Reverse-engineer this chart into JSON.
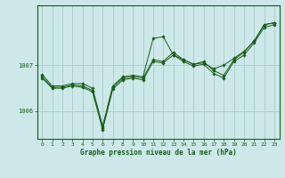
{
  "title": "Graphe pression niveau de la mer (hPa)",
  "background_color": "#cce8e8",
  "grid_color": "#aacccc",
  "line_color": "#1a5c1a",
  "marker_color": "#1a5c1a",
  "xlim": [
    -0.5,
    23.5
  ],
  "ylim": [
    1005.4,
    1008.3
  ],
  "yticks": [
    1006,
    1007
  ],
  "xticks": [
    0,
    1,
    2,
    3,
    4,
    5,
    6,
    7,
    8,
    9,
    10,
    11,
    12,
    13,
    14,
    15,
    16,
    17,
    18,
    19,
    20,
    21,
    22,
    23
  ],
  "series": [
    [
      1006.8,
      1006.55,
      1006.55,
      1006.6,
      1006.6,
      1006.5,
      1005.68,
      1006.55,
      1006.75,
      1006.78,
      1006.75,
      1007.58,
      1007.62,
      1007.22,
      1007.12,
      1007.02,
      1007.05,
      1006.92,
      1007.0,
      1007.15,
      1007.3,
      1007.52,
      1007.88,
      1007.92
    ],
    [
      1006.75,
      1006.52,
      1006.52,
      1006.57,
      1006.55,
      1006.45,
      1005.63,
      1006.52,
      1006.72,
      1006.75,
      1006.72,
      1007.12,
      1007.08,
      1007.28,
      1007.12,
      1007.02,
      1007.08,
      1006.88,
      1006.78,
      1007.12,
      1007.28,
      1007.52,
      1007.88,
      1007.92
    ],
    [
      1006.72,
      1006.5,
      1006.5,
      1006.55,
      1006.52,
      1006.42,
      1005.6,
      1006.48,
      1006.68,
      1006.72,
      1006.68,
      1007.08,
      1007.05,
      1007.22,
      1007.08,
      1006.98,
      1007.02,
      1006.82,
      1006.72,
      1007.08,
      1007.22,
      1007.48,
      1007.82,
      1007.88
    ]
  ]
}
